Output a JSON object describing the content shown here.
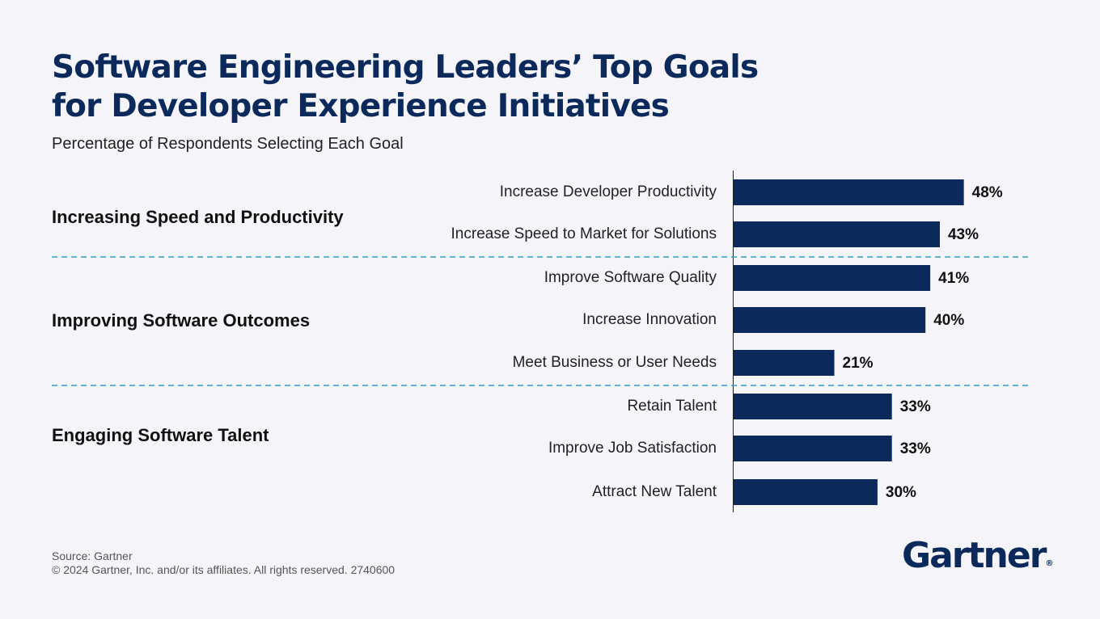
{
  "header": {
    "title_line1": "Software Engineering Leaders’ Top Goals",
    "title_line2": "for Developer Experience Initiatives",
    "subtitle": "Percentage of Respondents Selecting Each Goal"
  },
  "chart_data": {
    "type": "bar",
    "orientation": "horizontal",
    "title": "Software Engineering Leaders’ Top Goals for Developer Experience Initiatives",
    "subtitle": "Percentage of Respondents Selecting Each Goal",
    "categories": [
      "Increase Developer Productivity",
      "Increase Speed to Market for Solutions",
      "Improve Software Quality",
      "Increase Innovation",
      "Meet Business or User Needs",
      "Retain Talent",
      "Improve Job Satisfaction",
      "Attract New Talent"
    ],
    "values": [
      48,
      43,
      41,
      40,
      21,
      33,
      33,
      30
    ],
    "value_labels": [
      "48%",
      "43%",
      "41%",
      "40%",
      "21%",
      "33%",
      "33%",
      "30%"
    ],
    "unit": "%",
    "groups": [
      {
        "name": "Increasing Speed and Productivity",
        "categories": [
          "Increase Developer Productivity",
          "Increase Speed to Market for Solutions"
        ]
      },
      {
        "name": "Improving Software Outcomes",
        "categories": [
          "Improve Software Quality",
          "Increase Innovation",
          "Meet Business or User Needs"
        ]
      },
      {
        "name": "Engaging Software Talent",
        "categories": [
          "Retain Talent",
          "Improve Job Satisfaction",
          "Attract New Talent"
        ]
      }
    ],
    "xlim": [
      0,
      50
    ],
    "grid": false,
    "bar_color": "#0b2a5b",
    "divider_color": "#3a9bc4"
  },
  "footer": {
    "source": "Source: Gartner",
    "copyright": "© 2024 Gartner, Inc. and/or its affiliates. All rights reserved. 2740600",
    "brand": "Gartner",
    "brand_mark": "®"
  }
}
